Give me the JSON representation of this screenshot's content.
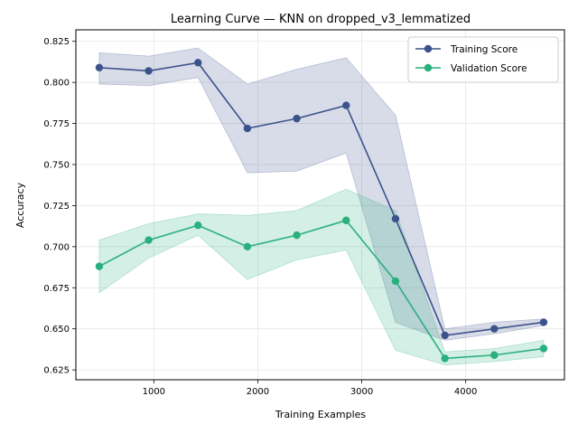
{
  "chart_data": {
    "type": "line",
    "title": "Learning Curve — KNN on dropped_v3_lemmatized",
    "xlabel": "Training Examples",
    "ylabel": "Accuracy",
    "xlim": [
      250,
      4950
    ],
    "ylim": [
      0.619,
      0.832
    ],
    "x_ticks": [
      1000,
      2000,
      3000,
      4000
    ],
    "y_ticks": [
      0.625,
      0.65,
      0.675,
      0.7,
      0.725,
      0.75,
      0.775,
      0.8,
      0.825
    ],
    "grid": true,
    "legend_position": "top-right",
    "x": [
      475,
      950,
      1425,
      1900,
      2375,
      2850,
      3325,
      3800,
      4275,
      4750
    ],
    "series": [
      {
        "name": "Training Score",
        "color": "#3b528b",
        "values": [
          0.809,
          0.807,
          0.812,
          0.772,
          0.778,
          0.786,
          0.717,
          0.646,
          0.65,
          0.654
        ],
        "upper": [
          0.818,
          0.816,
          0.821,
          0.799,
          0.808,
          0.815,
          0.78,
          0.65,
          0.654,
          0.656
        ],
        "lower": [
          0.799,
          0.798,
          0.803,
          0.745,
          0.746,
          0.757,
          0.654,
          0.643,
          0.647,
          0.652
        ]
      },
      {
        "name": "Validation Score",
        "color": "#2ab07f",
        "values": [
          0.688,
          0.704,
          0.713,
          0.7,
          0.707,
          0.716,
          0.679,
          0.632,
          0.634,
          0.638
        ],
        "upper": [
          0.704,
          0.714,
          0.72,
          0.719,
          0.722,
          0.735,
          0.722,
          0.636,
          0.638,
          0.643
        ],
        "lower": [
          0.672,
          0.693,
          0.707,
          0.68,
          0.692,
          0.698,
          0.637,
          0.628,
          0.63,
          0.633
        ]
      }
    ]
  }
}
